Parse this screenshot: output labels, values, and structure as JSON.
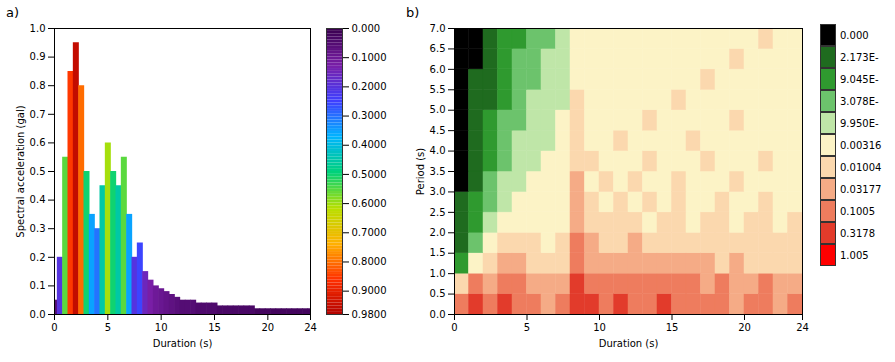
{
  "chart_data": [
    {
      "panel": "a)",
      "type": "bar",
      "x_label": "Duration (s)",
      "y_label": "Spectral acceleration (gal)",
      "x": [
        0,
        0.5,
        1,
        1.5,
        2,
        2.5,
        3,
        3.5,
        4,
        4.5,
        5,
        5.5,
        6,
        6.5,
        7,
        7.5,
        8,
        8.5,
        9,
        9.5,
        10,
        10.5,
        11,
        11.5,
        12,
        12.5,
        13,
        13.5,
        14,
        14.5,
        15,
        15.5,
        16,
        16.5,
        17,
        17.5,
        18,
        18.5,
        19,
        19.5,
        20,
        20.5,
        21,
        21.5,
        22,
        22.5,
        23,
        23.5,
        24
      ],
      "values": [
        0.05,
        0.2,
        0.55,
        0.85,
        0.95,
        0.8,
        0.5,
        0.35,
        0.3,
        0.45,
        0.6,
        0.5,
        0.45,
        0.55,
        0.35,
        0.2,
        0.25,
        0.15,
        0.12,
        0.1,
        0.09,
        0.08,
        0.07,
        0.06,
        0.05,
        0.05,
        0.05,
        0.04,
        0.04,
        0.04,
        0.04,
        0.03,
        0.03,
        0.03,
        0.03,
        0.03,
        0.03,
        0.03,
        0.02,
        0.02,
        0.02,
        0.02,
        0.02,
        0.02,
        0.02,
        0.02,
        0.02,
        0.02,
        0.02
      ],
      "xlim": [
        0,
        24
      ],
      "ylim": [
        0,
        1.0
      ],
      "xticks": [
        0,
        5,
        10,
        15,
        20,
        24
      ],
      "yticks": [
        {
          "value": 0,
          "label": "0.0"
        },
        {
          "value": 0.1,
          "label": "0.1"
        },
        {
          "value": 0.2,
          "label": "0.2"
        },
        {
          "value": 0.3,
          "label": "0.3"
        },
        {
          "value": 0.4,
          "label": "0.4"
        },
        {
          "value": 0.5,
          "label": "0.5"
        },
        {
          "value": 0.6,
          "label": "0.6"
        },
        {
          "value": 0.7,
          "label": "0.7"
        },
        {
          "value": 0.8,
          "label": "0.8"
        },
        {
          "value": 0.9,
          "label": "0.9"
        },
        {
          "value": 1.0,
          "label": "1.0"
        }
      ],
      "colorbar": {
        "range": [
          0,
          0.98
        ],
        "ticks": [
          {
            "value": 0,
            "label": "0.000"
          },
          {
            "value": 0.1,
            "label": "0.1000"
          },
          {
            "value": 0.2,
            "label": "0.2000"
          },
          {
            "value": 0.3,
            "label": "0.3000"
          },
          {
            "value": 0.4,
            "label": "0.4000"
          },
          {
            "value": 0.5,
            "label": "0.5000"
          },
          {
            "value": 0.6,
            "label": "0.6000"
          },
          {
            "value": 0.7,
            "label": "0.7000"
          },
          {
            "value": 0.8,
            "label": "0.8000"
          },
          {
            "value": 0.9,
            "label": "0.9000"
          },
          {
            "value": 0.98,
            "label": "0.9800"
          }
        ],
        "colors": [
          "#3a0050",
          "#7a1fa8",
          "#3f3fff",
          "#00b4ff",
          "#00d27a",
          "#b8e000",
          "#ffb000",
          "#ff3000",
          "#b00000"
        ]
      }
    },
    {
      "panel": "b)",
      "type": "heatmap",
      "x_label": "Duration (s)",
      "y_label": "Period (s)",
      "x_edges": [
        0,
        1,
        2,
        3,
        4,
        5,
        6,
        7,
        8,
        9,
        10,
        11,
        12,
        13,
        14,
        15,
        16,
        17,
        18,
        19,
        20,
        21,
        22,
        23,
        24
      ],
      "y_edges": [
        0,
        0.5,
        1,
        1.5,
        2,
        2.5,
        3,
        3.5,
        4,
        4.5,
        5,
        5.5,
        6,
        6.5,
        7
      ],
      "z": [
        [
          0.2,
          0.5,
          0.2,
          0.5,
          0.2,
          0.2,
          0.06,
          0.2,
          0.5,
          0.5,
          0.2,
          0.5,
          0.2,
          0.2,
          0.5,
          0.2,
          0.2,
          0.2,
          0.2,
          0.06,
          0.2,
          0.2,
          0.06,
          0.2
        ],
        [
          0.02,
          0.2,
          0.06,
          0.2,
          0.2,
          0.06,
          0.06,
          0.06,
          0.5,
          0.2,
          0.2,
          0.2,
          0.2,
          0.2,
          0.2,
          0.2,
          0.2,
          0.06,
          0.2,
          0.06,
          0.06,
          0.2,
          0.06,
          0.06
        ],
        [
          0.0002,
          0.006,
          0.02,
          0.06,
          0.06,
          0.02,
          0.02,
          0.02,
          0.2,
          0.06,
          0.06,
          0.06,
          0.06,
          0.06,
          0.06,
          0.06,
          0.06,
          0.06,
          0.02,
          0.06,
          0.02,
          0.02,
          0.02,
          0.02
        ],
        [
          5e-05,
          0.0006,
          0.006,
          0.02,
          0.02,
          0.02,
          0.006,
          0.02,
          0.2,
          0.06,
          0.02,
          0.02,
          0.06,
          0.02,
          0.02,
          0.02,
          0.02,
          0.02,
          0.02,
          0.02,
          0.02,
          0.02,
          0.02,
          0.02
        ],
        [
          5e-05,
          0.0002,
          0.002,
          0.006,
          0.006,
          0.006,
          0.006,
          0.006,
          0.06,
          0.02,
          0.02,
          0.02,
          0.02,
          0.006,
          0.02,
          0.02,
          0.006,
          0.02,
          0.02,
          0.006,
          0.02,
          0.02,
          0.006,
          0.02
        ],
        [
          5e-05,
          0.0002,
          0.0006,
          0.002,
          0.006,
          0.006,
          0.006,
          0.006,
          0.06,
          0.02,
          0.006,
          0.02,
          0.006,
          0.02,
          0.006,
          0.02,
          0.006,
          0.006,
          0.02,
          0.006,
          0.006,
          0.02,
          0.006,
          0.006
        ],
        [
          1e-05,
          5e-05,
          0.0006,
          0.002,
          0.002,
          0.006,
          0.006,
          0.006,
          0.06,
          0.006,
          0.02,
          0.006,
          0.02,
          0.006,
          0.006,
          0.02,
          0.006,
          0.006,
          0.006,
          0.02,
          0.006,
          0.006,
          0.006,
          0.006
        ],
        [
          1e-05,
          5e-05,
          0.0002,
          0.0006,
          0.002,
          0.002,
          0.006,
          0.006,
          0.02,
          0.02,
          0.006,
          0.006,
          0.006,
          0.02,
          0.006,
          0.006,
          0.006,
          0.02,
          0.006,
          0.006,
          0.006,
          0.02,
          0.006,
          0.006
        ],
        [
          1e-05,
          5e-05,
          0.0002,
          0.0006,
          0.002,
          0.002,
          0.002,
          0.006,
          0.02,
          0.006,
          0.006,
          0.02,
          0.006,
          0.006,
          0.006,
          0.006,
          0.02,
          0.006,
          0.006,
          0.006,
          0.006,
          0.006,
          0.006,
          0.006
        ],
        [
          1e-05,
          5e-05,
          0.0002,
          0.0006,
          0.0006,
          0.002,
          0.002,
          0.006,
          0.02,
          0.006,
          0.006,
          0.006,
          0.006,
          0.02,
          0.006,
          0.006,
          0.006,
          0.006,
          0.006,
          0.02,
          0.006,
          0.006,
          0.006,
          0.006
        ],
        [
          1e-05,
          5e-05,
          5e-05,
          0.0002,
          0.0006,
          0.002,
          0.002,
          0.002,
          0.02,
          0.006,
          0.006,
          0.006,
          0.006,
          0.006,
          0.006,
          0.02,
          0.006,
          0.006,
          0.006,
          0.006,
          0.006,
          0.006,
          0.006,
          0.006
        ],
        [
          1e-05,
          5e-05,
          5e-05,
          0.0002,
          0.0006,
          0.0006,
          0.002,
          0.002,
          0.006,
          0.006,
          0.006,
          0.006,
          0.006,
          0.006,
          0.006,
          0.006,
          0.006,
          0.02,
          0.006,
          0.006,
          0.006,
          0.006,
          0.006,
          0.006
        ],
        [
          1e-05,
          1e-05,
          5e-05,
          0.0002,
          0.0006,
          0.0006,
          0.002,
          0.002,
          0.006,
          0.006,
          0.006,
          0.006,
          0.006,
          0.006,
          0.006,
          0.006,
          0.006,
          0.006,
          0.006,
          0.02,
          0.006,
          0.006,
          0.006,
          0.006
        ],
        [
          1e-05,
          1e-05,
          5e-05,
          0.0002,
          0.0002,
          0.0006,
          0.0006,
          0.002,
          0.006,
          0.006,
          0.006,
          0.006,
          0.006,
          0.006,
          0.006,
          0.006,
          0.006,
          0.006,
          0.006,
          0.006,
          0.006,
          0.02,
          0.006,
          0.006
        ]
      ],
      "xlim": [
        0,
        24
      ],
      "ylim": [
        0,
        7
      ],
      "xticks": [
        0,
        5,
        10,
        15,
        20,
        24
      ],
      "yticks": [
        {
          "value": 0,
          "label": "0.0"
        },
        {
          "value": 0.5,
          "label": "0.5"
        },
        {
          "value": 1,
          "label": "1.0"
        },
        {
          "value": 1.5,
          "label": "1.5"
        },
        {
          "value": 2,
          "label": "2.0"
        },
        {
          "value": 2.5,
          "label": "2.5"
        },
        {
          "value": 3,
          "label": "3.0"
        },
        {
          "value": 3.5,
          "label": "3.5"
        },
        {
          "value": 4,
          "label": "4.0"
        },
        {
          "value": 4.5,
          "label": "4.5"
        },
        {
          "value": 5,
          "label": "5.0"
        },
        {
          "value": 5.5,
          "label": "5.5"
        },
        {
          "value": 6,
          "label": "6.0"
        },
        {
          "value": 6.5,
          "label": "6.5"
        },
        {
          "value": 7,
          "label": "7.0"
        }
      ],
      "colorbar": {
        "ticks": [
          {
            "value": 0,
            "label": "0.000"
          },
          {
            "value": 2.173e-05,
            "label": "2.173E-"
          },
          {
            "value": 9.045e-05,
            "label": "9.045E-"
          },
          {
            "value": 0.0003078,
            "label": "3.078E-"
          },
          {
            "value": 0.000995,
            "label": "9.950E-"
          },
          {
            "value": 0.00316,
            "label": "0.00316"
          },
          {
            "value": 0.01004,
            "label": "0.01004"
          },
          {
            "value": 0.03177,
            "label": "0.03177"
          },
          {
            "value": 0.1005,
            "label": "0.1005"
          },
          {
            "value": 0.3178,
            "label": "0.3178"
          },
          {
            "value": 1.005,
            "label": "1.005"
          }
        ],
        "colors": [
          "#000000",
          "#1f6b1f",
          "#2f9a2f",
          "#6cc36c",
          "#bfe6a8",
          "#fcf3c6",
          "#fbd8ae",
          "#f5ab86",
          "#ee7c5e",
          "#e23b2b",
          "#ff0000"
        ]
      }
    }
  ]
}
